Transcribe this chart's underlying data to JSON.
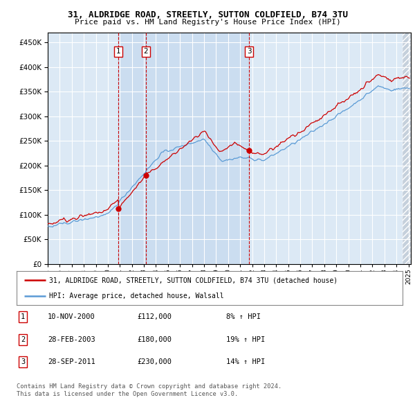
{
  "title": "31, ALDRIDGE ROAD, STREETLY, SUTTON COLDFIELD, B74 3TU",
  "subtitle": "Price paid vs. HM Land Registry's House Price Index (HPI)",
  "ylim": [
    0,
    470000
  ],
  "xlim_start": 1995.0,
  "xlim_end": 2025.2,
  "legend_line1": "31, ALDRIDGE ROAD, STREETLY, SUTTON COLDFIELD, B74 3TU (detached house)",
  "legend_line2": "HPI: Average price, detached house, Walsall",
  "transactions": [
    {
      "num": 1,
      "date": "10-NOV-2000",
      "price": "£112,000",
      "hpi": "8% ↑ HPI",
      "year": 2000.87
    },
    {
      "num": 2,
      "date": "28-FEB-2003",
      "price": "£180,000",
      "hpi": "19% ↑ HPI",
      "year": 2003.16
    },
    {
      "num": 3,
      "date": "28-SEP-2011",
      "price": "£230,000",
      "hpi": "14% ↑ HPI",
      "year": 2011.75
    }
  ],
  "footnote1": "Contains HM Land Registry data © Crown copyright and database right 2024.",
  "footnote2": "This data is licensed under the Open Government Licence v3.0.",
  "hpi_color": "#5b9bd5",
  "price_color": "#cc0000",
  "bg_color": "#dce9f5",
  "shade_color": "#c5d8ee",
  "hatch_bg": "#d0dce8"
}
